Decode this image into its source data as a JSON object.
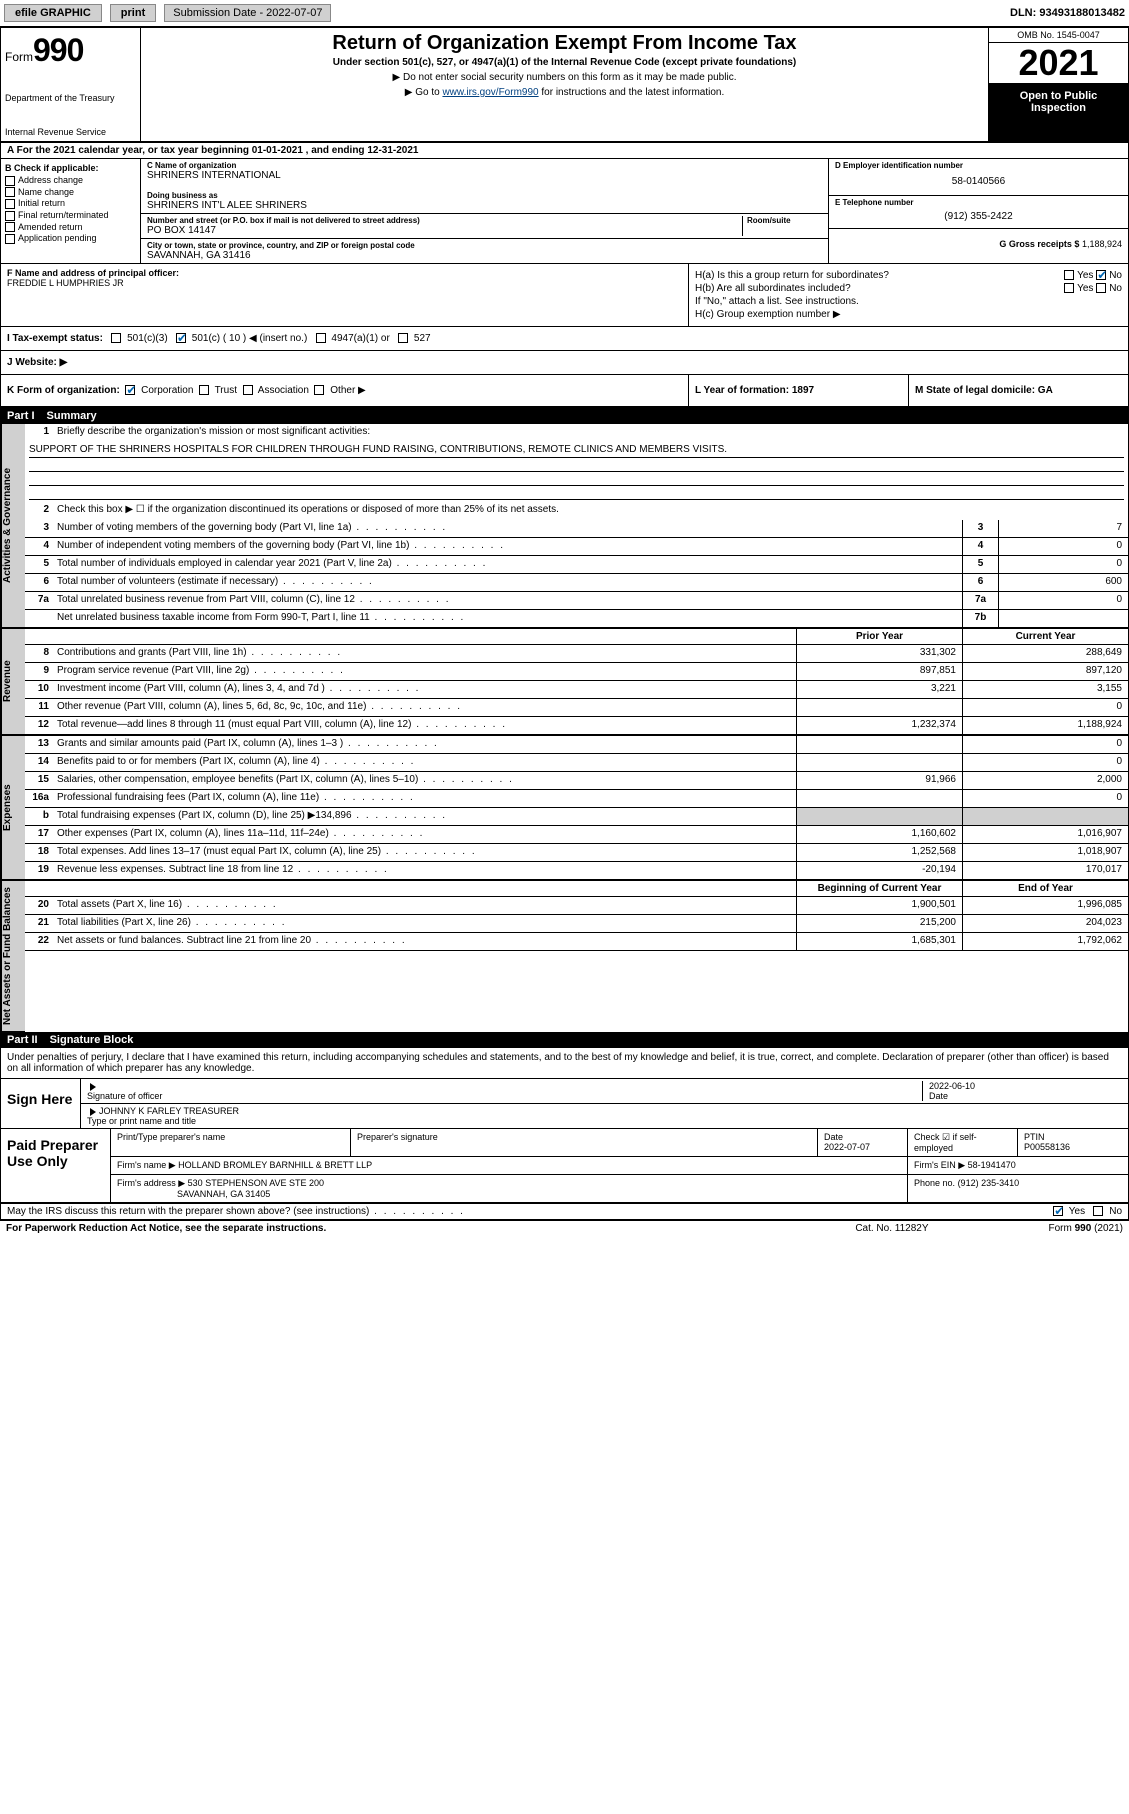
{
  "topbar": {
    "efile": "efile GRAPHIC",
    "print": "print",
    "submission_label": "Submission Date - 2022-07-07",
    "dln": "DLN: 93493188013482"
  },
  "header": {
    "form_word": "Form",
    "form_num": "990",
    "title": "Return of Organization Exempt From Income Tax",
    "subtitle": "Under section 501(c), 527, or 4947(a)(1) of the Internal Revenue Code (except private foundations)",
    "note1": "▶ Do not enter social security numbers on this form as it may be made public.",
    "note2_pre": "▶ Go to ",
    "note2_link": "www.irs.gov/Form990",
    "note2_post": " for instructions and the latest information.",
    "dept": "Department of the Treasury",
    "irs": "Internal Revenue Service",
    "omb": "OMB No. 1545-0047",
    "year": "2021",
    "open": "Open to Public Inspection"
  },
  "row_a": "A For the 2021 calendar year, or tax year beginning 01-01-2021    , and ending 12-31-2021",
  "box_b": {
    "hdr": "B Check if applicable:",
    "items": [
      "Address change",
      "Name change",
      "Initial return",
      "Final return/terminated",
      "Amended return",
      "Application pending"
    ]
  },
  "box_c": {
    "name_lbl": "C Name of organization",
    "name": "SHRINERS INTERNATIONAL",
    "dba_lbl": "Doing business as",
    "dba": "SHRINERS INT'L ALEE SHRINERS",
    "addr_lbl": "Number and street (or P.O. box if mail is not delivered to street address)",
    "room_lbl": "Room/suite",
    "addr": "PO BOX 14147",
    "city_lbl": "City or town, state or province, country, and ZIP or foreign postal code",
    "city": "SAVANNAH, GA  31416"
  },
  "box_d": {
    "ein_lbl": "D Employer identification number",
    "ein": "58-0140566",
    "tel_lbl": "E Telephone number",
    "tel": "(912) 355-2422",
    "gross_lbl": "G Gross receipts $",
    "gross": "1,188,924"
  },
  "box_f": {
    "lbl": "F Name and address of principal officer:",
    "name": "FREDDIE L HUMPHRIES JR"
  },
  "box_h": {
    "ha": "H(a)  Is this a group return for subordinates?",
    "hb": "H(b)  Are all subordinates included?",
    "hb_note": "If \"No,\" attach a list. See instructions.",
    "hc": "H(c)  Group exemption number ▶"
  },
  "row_i": {
    "lbl": "I    Tax-exempt status:",
    "opts": [
      "501(c)(3)",
      "501(c) ( 10 ) ◀ (insert no.)",
      "4947(a)(1) or",
      "527"
    ]
  },
  "row_j": "J   Website: ▶",
  "row_k": "K Form of organization:",
  "row_k_opts": [
    "Corporation",
    "Trust",
    "Association",
    "Other ▶"
  ],
  "row_l": "L Year of formation: 1897",
  "row_m": "M State of legal domicile: GA",
  "part1": {
    "hdr_part": "Part I",
    "hdr_title": "Summary"
  },
  "side_labels": {
    "gov": "Activities & Governance",
    "rev": "Revenue",
    "exp": "Expenses",
    "net": "Net Assets or Fund Balances"
  },
  "line1": {
    "num": "1",
    "text": "Briefly describe the organization's mission or most significant activities:",
    "mission": "SUPPORT OF THE SHRINERS HOSPITALS FOR CHILDREN THROUGH FUND RAISING, CONTRIBUTIONS, REMOTE CLINICS AND MEMBERS VISITS."
  },
  "line2": {
    "num": "2",
    "text": "Check this box ▶ ☐  if the organization discontinued its operations or disposed of more than 25% of its net assets."
  },
  "gov_lines": [
    {
      "num": "3",
      "text": "Number of voting members of the governing body (Part VI, line 1a)",
      "box": "3",
      "val": "7"
    },
    {
      "num": "4",
      "text": "Number of independent voting members of the governing body (Part VI, line 1b)",
      "box": "4",
      "val": "0"
    },
    {
      "num": "5",
      "text": "Total number of individuals employed in calendar year 2021 (Part V, line 2a)",
      "box": "5",
      "val": "0"
    },
    {
      "num": "6",
      "text": "Total number of volunteers (estimate if necessary)",
      "box": "6",
      "val": "600"
    },
    {
      "num": "7a",
      "text": "Total unrelated business revenue from Part VIII, column (C), line 12",
      "box": "7a",
      "val": "0"
    },
    {
      "num": "",
      "text": "Net unrelated business taxable income from Form 990-T, Part I, line 11",
      "box": "7b",
      "val": ""
    }
  ],
  "col_hdrs": {
    "prior": "Prior Year",
    "current": "Current Year",
    "begin": "Beginning of Current Year",
    "end": "End of Year"
  },
  "rev_lines": [
    {
      "num": "8",
      "text": "Contributions and grants (Part VIII, line 1h)",
      "prior": "331,302",
      "curr": "288,649"
    },
    {
      "num": "9",
      "text": "Program service revenue (Part VIII, line 2g)",
      "prior": "897,851",
      "curr": "897,120"
    },
    {
      "num": "10",
      "text": "Investment income (Part VIII, column (A), lines 3, 4, and 7d )",
      "prior": "3,221",
      "curr": "3,155"
    },
    {
      "num": "11",
      "text": "Other revenue (Part VIII, column (A), lines 5, 6d, 8c, 9c, 10c, and 11e)",
      "prior": "",
      "curr": "0"
    },
    {
      "num": "12",
      "text": "Total revenue—add lines 8 through 11 (must equal Part VIII, column (A), line 12)",
      "prior": "1,232,374",
      "curr": "1,188,924"
    }
  ],
  "exp_lines": [
    {
      "num": "13",
      "text": "Grants and similar amounts paid (Part IX, column (A), lines 1–3 )",
      "prior": "",
      "curr": "0"
    },
    {
      "num": "14",
      "text": "Benefits paid to or for members (Part IX, column (A), line 4)",
      "prior": "",
      "curr": "0"
    },
    {
      "num": "15",
      "text": "Salaries, other compensation, employee benefits (Part IX, column (A), lines 5–10)",
      "prior": "91,966",
      "curr": "2,000"
    },
    {
      "num": "16a",
      "text": "Professional fundraising fees (Part IX, column (A), line 11e)",
      "prior": "",
      "curr": "0"
    },
    {
      "num": "b",
      "text": "Total fundraising expenses (Part IX, column (D), line 25) ▶134,896",
      "prior": "SHADE",
      "curr": "SHADE"
    },
    {
      "num": "17",
      "text": "Other expenses (Part IX, column (A), lines 11a–11d, 11f–24e)",
      "prior": "1,160,602",
      "curr": "1,016,907"
    },
    {
      "num": "18",
      "text": "Total expenses. Add lines 13–17 (must equal Part IX, column (A), line 25)",
      "prior": "1,252,568",
      "curr": "1,018,907"
    },
    {
      "num": "19",
      "text": "Revenue less expenses. Subtract line 18 from line 12",
      "prior": "-20,194",
      "curr": "170,017"
    }
  ],
  "net_lines": [
    {
      "num": "20",
      "text": "Total assets (Part X, line 16)",
      "prior": "1,900,501",
      "curr": "1,996,085"
    },
    {
      "num": "21",
      "text": "Total liabilities (Part X, line 26)",
      "prior": "215,200",
      "curr": "204,023"
    },
    {
      "num": "22",
      "text": "Net assets or fund balances. Subtract line 21 from line 20",
      "prior": "1,685,301",
      "curr": "1,792,062"
    }
  ],
  "part2": {
    "hdr_part": "Part II",
    "hdr_title": "Signature Block",
    "decl": "Under penalties of perjury, I declare that I have examined this return, including accompanying schedules and statements, and to the best of my knowledge and belief, it is true, correct, and complete. Declaration of preparer (other than officer) is based on all information of which preparer has any knowledge."
  },
  "sign": {
    "left": "Sign Here",
    "sig_lbl": "Signature of officer",
    "date_lbl": "Date",
    "date": "2022-06-10",
    "name": "JOHNNY K FARLEY  TREASURER",
    "name_lbl": "Type or print name and title"
  },
  "prep": {
    "left": "Paid Preparer Use Only",
    "h1": "Print/Type preparer's name",
    "h2": "Preparer's signature",
    "h3": "Date",
    "h3v": "2022-07-07",
    "h4": "Check ☑ if self-employed",
    "h5": "PTIN",
    "h5v": "P00558136",
    "firm_lbl": "Firm's name    ▶",
    "firm": "HOLLAND BROMLEY BARNHILL & BRETT LLP",
    "ein_lbl": "Firm's EIN ▶",
    "ein": "58-1941470",
    "addr_lbl": "Firm's address ▶",
    "addr1": "530 STEPHENSON AVE STE 200",
    "addr2": "SAVANNAH, GA  31405",
    "phone_lbl": "Phone no.",
    "phone": "(912) 235-3410"
  },
  "discuss": "May the IRS discuss this return with the preparer shown above? (see instructions)",
  "footer": {
    "left": "For Paperwork Reduction Act Notice, see the separate instructions.",
    "mid": "Cat. No. 11282Y",
    "right": "Form 990 (2021)"
  }
}
